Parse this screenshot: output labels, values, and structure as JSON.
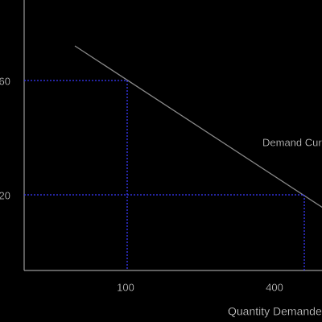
{
  "y_labels": [
    "60",
    "20"
  ],
  "x_labels": [
    "100",
    "400"
  ],
  "curve_label": "Demand Curve",
  "x_axis_title": "Quantity Demanded"
}
